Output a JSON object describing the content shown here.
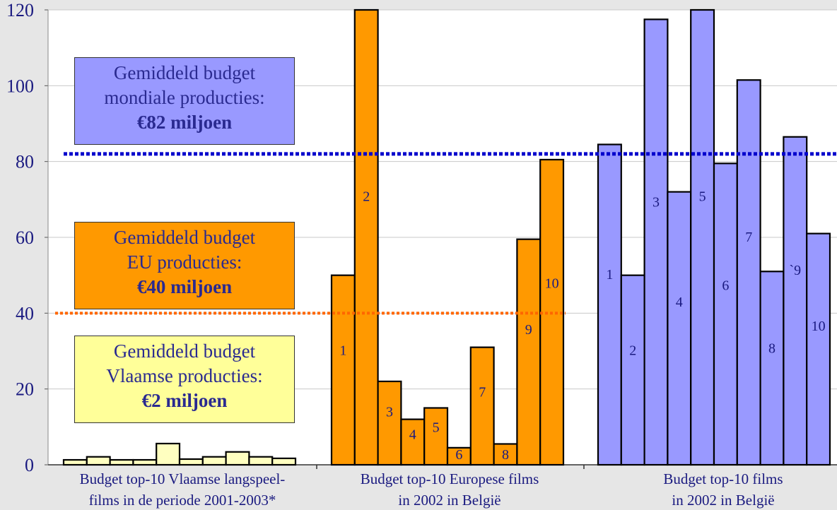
{
  "chart_data": {
    "type": "bar",
    "ylim": [
      0,
      120
    ],
    "yticks": [
      0,
      20,
      40,
      60,
      80,
      100,
      120
    ],
    "grid": true,
    "groups": [
      {
        "name": "Budget top-10 Vlaamse langspeelfilms in de periode 2001-2003*",
        "label_lines": [
          "Budget top-10 Vlaamse langspeel-",
          "films in de periode 2001-2003*"
        ],
        "color": "#ffffc0",
        "values": [
          1.3,
          2.1,
          1.3,
          1.3,
          5.6,
          1.5,
          2.1,
          3.4,
          2.1,
          1.7
        ],
        "bar_labels": [
          "",
          "",
          "",
          "",
          "",
          "",
          "",
          "",
          "",
          ""
        ]
      },
      {
        "name": "Budget top-10 Europese films in 2002 in België",
        "label_lines": [
          "Budget top-10 Europese films",
          "in 2002 in België"
        ],
        "color": "#ff9900",
        "values": [
          50,
          120,
          22,
          12,
          15,
          4.5,
          31,
          5.5,
          59.5,
          80.5
        ],
        "bar_labels": [
          "1",
          "2",
          "3",
          "4",
          "5",
          "6",
          "7",
          "8",
          "9",
          "10"
        ]
      },
      {
        "name": "Budget top-10 films in 2002 in België",
        "label_lines": [
          "Budget top-10 films",
          "in 2002 in België"
        ],
        "color": "#9999ff",
        "values": [
          84.5,
          50,
          117.5,
          72,
          120,
          79.5,
          101.5,
          51,
          86.5,
          61
        ],
        "bar_labels": [
          "1",
          "2",
          "3",
          "4",
          "5",
          "6",
          "7",
          "8",
          "`9",
          "10"
        ]
      }
    ],
    "reference_lines": [
      {
        "name": "Gemiddeld budget mondiale producties",
        "value": 82,
        "color": "#0000cc"
      },
      {
        "name": "Gemiddeld budget EU producties",
        "value": 40,
        "color": "#ff6600"
      }
    ]
  },
  "annotations": {
    "mondiaal": {
      "line1": "Gemiddeld budget",
      "line2": "mondiale producties:",
      "value": "€82 miljoen",
      "color": "#9999ff"
    },
    "eu": {
      "line1": "Gemiddeld budget",
      "line2": "EU producties:",
      "value": "€40 miljoen",
      "color": "#ff9900"
    },
    "vlaams": {
      "line1": "Gemiddeld budget",
      "line2": "Vlaamse producties:",
      "value": "€2 miljoen",
      "color": "#ffff99"
    }
  }
}
